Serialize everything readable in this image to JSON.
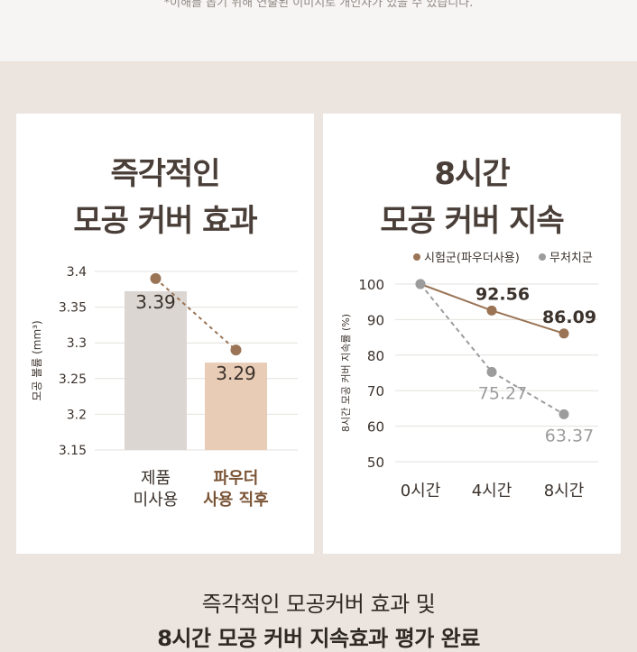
{
  "header": {
    "disclaimer": "*이해를 돕기 위해 연출된 이미지로 개인차가 있을 수 있습니다."
  },
  "colors": {
    "page_bg": "#ece5df",
    "card_bg": "#ffffff",
    "bar_before": "#dcd6d2",
    "bar_after": "#e8ccb6",
    "accent_brown": "#9a7455",
    "control_gray": "#9c9c9c",
    "text_dark": "#4a3f38"
  },
  "left_card": {
    "title_line1": "즉각적인",
    "title_line2": "모공 커버 효과"
  },
  "right_card": {
    "title_line1": "8시간",
    "title_line2": "모공 커버 지속"
  },
  "bottom": {
    "line1": "즉각적인 모공커버 효과 및",
    "line2": "8시간 모공 커버 지속효과 평가 완료"
  },
  "chart_data": [
    {
      "type": "bar",
      "title": "즉각적인 모공 커버 효과",
      "ylabel": "모공 볼륨 (mm³)",
      "ylim": [
        3.15,
        3.4
      ],
      "yticks": [
        "3.4",
        "3.35",
        "3.3",
        "3.25",
        "3.2",
        "3.15"
      ],
      "yticks_values": [
        3.4,
        3.35,
        3.3,
        3.25,
        3.2,
        3.15
      ],
      "categories": [
        [
          "제품",
          "미사용"
        ],
        [
          "파우더",
          "사용 직후"
        ]
      ],
      "values": [
        3.39,
        3.29
      ],
      "value_labels": [
        "3.39",
        "3.29"
      ],
      "bar_colors": [
        "#dcd6d2",
        "#e8ccb6"
      ],
      "category_colors": [
        "#3b322c",
        "#7a5436"
      ],
      "trend_line": "dashed",
      "grid": true
    },
    {
      "type": "line",
      "title": "8시간 모공 커버 지속",
      "ylabel": "8시간 모공 커버 지속률 (%)",
      "ylim": [
        50,
        100
      ],
      "yticks": [
        "100",
        "90",
        "80",
        "70",
        "60",
        "50"
      ],
      "yticks_values": [
        100,
        90,
        80,
        70,
        60,
        50
      ],
      "categories": [
        "0시간",
        "4시간",
        "8시간"
      ],
      "legend_position": "top-right",
      "grid": true,
      "series": [
        {
          "name": "시험군(파우더사용)",
          "values": [
            100,
            92.56,
            86.09
          ],
          "labels": [
            "",
            "92.56",
            "86.09"
          ],
          "color": "#9a7455",
          "style": "solid"
        },
        {
          "name": "무처치군",
          "values": [
            100,
            75.27,
            63.37
          ],
          "labels": [
            "",
            "75.27",
            "63.37"
          ],
          "color": "#9c9c9c",
          "style": "dashed"
        }
      ]
    }
  ]
}
